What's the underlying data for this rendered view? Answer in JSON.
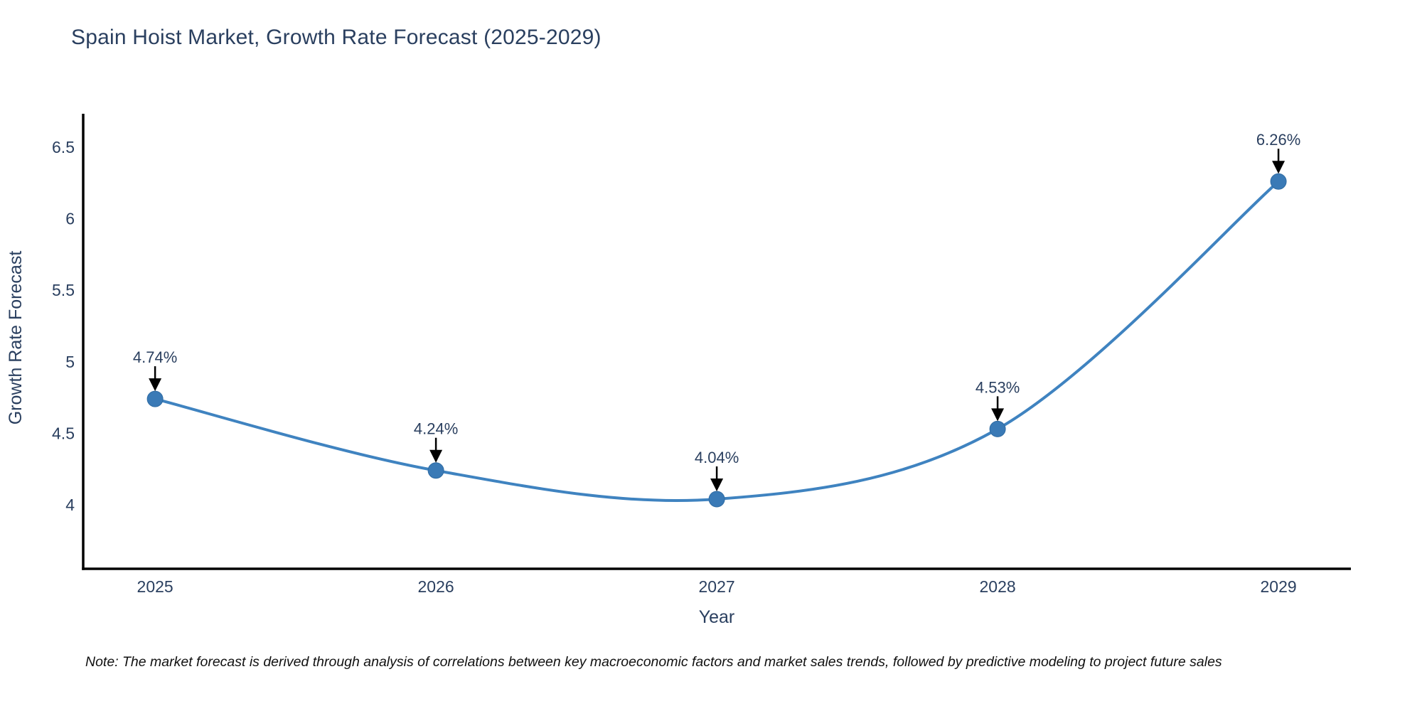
{
  "title": "Spain Hoist Market, Growth Rate Forecast (2025-2029)",
  "note": "Note: The market forecast is derived through analysis of correlations between key macroeconomic factors and market sales trends, followed by predictive modeling to project future sales",
  "colors": {
    "line": "#3f83c0",
    "marker": "#3a7ab6",
    "marker_edge": "#2f6ba3",
    "axis": "#000000",
    "text": "#2a3f5f",
    "arrow": "#000000"
  },
  "chart_data": {
    "type": "line",
    "title": "Spain Hoist Market, Growth Rate Forecast (2025-2029)",
    "xlabel": "Year",
    "ylabel": "Growth Rate Forecast",
    "x": [
      2025,
      2026,
      2027,
      2028,
      2029
    ],
    "y": [
      4.74,
      4.24,
      4.04,
      4.53,
      6.26
    ],
    "point_labels": [
      "4.74%",
      "4.24%",
      "4.04%",
      "4.53%",
      "6.26%"
    ],
    "xticks": [
      "2025",
      "2026",
      "2027",
      "2028",
      "2029"
    ],
    "yticks": [
      4,
      4.5,
      5,
      5.5,
      6,
      6.5
    ],
    "xlim": [
      2024.744,
      2029.258
    ],
    "ylim": [
      3.553,
      6.733
    ],
    "grid": false,
    "legend": null,
    "curve": "spline",
    "markers": true,
    "annotations": "value labels with downward arrows above each point"
  }
}
